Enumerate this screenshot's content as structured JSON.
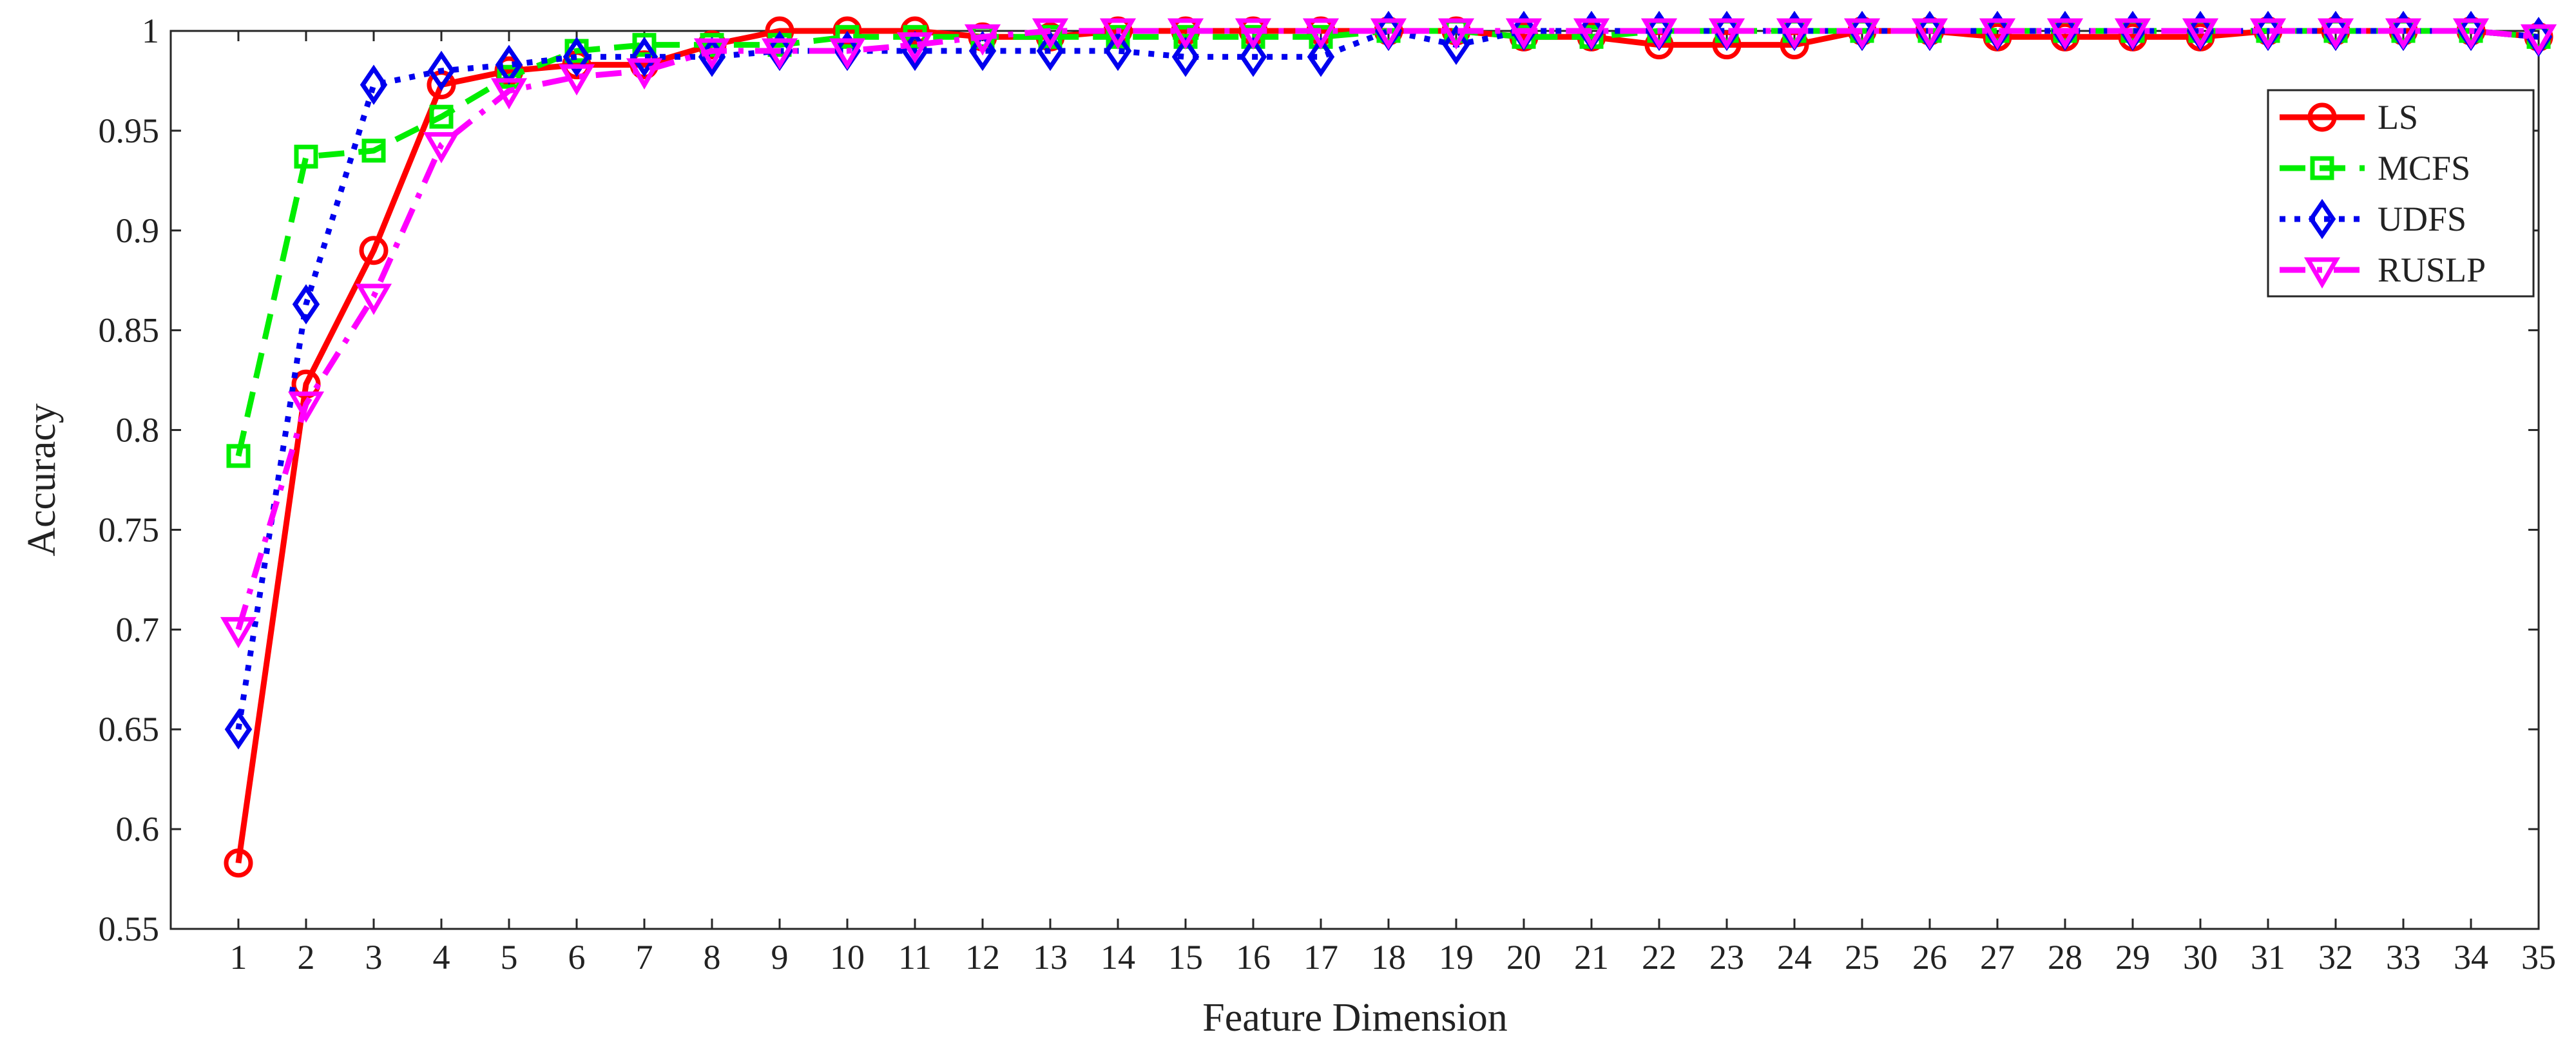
{
  "chart_data": {
    "type": "line",
    "title": "",
    "xlabel": "Feature Dimension",
    "ylabel": "Accuracy",
    "xlim": [
      0,
      35
    ],
    "ylim": [
      0.55,
      1
    ],
    "xticks": [
      1,
      2,
      3,
      4,
      5,
      6,
      7,
      8,
      9,
      10,
      11,
      12,
      13,
      14,
      15,
      16,
      17,
      18,
      19,
      20,
      21,
      22,
      23,
      24,
      25,
      26,
      27,
      28,
      29,
      30,
      31,
      32,
      33,
      34,
      35
    ],
    "yticks": [
      0.55,
      0.6,
      0.65,
      0.7,
      0.75,
      0.8,
      0.85,
      0.9,
      0.95,
      1
    ],
    "ytick_labels": [
      "0.55",
      "0.6",
      "0.65",
      "0.7",
      "0.75",
      "0.8",
      "0.85",
      "0.9",
      "0.95",
      "1"
    ],
    "grid": false,
    "legend_position": "top-right",
    "x": [
      1,
      2,
      3,
      4,
      5,
      6,
      7,
      8,
      9,
      10,
      11,
      12,
      13,
      14,
      15,
      16,
      17,
      18,
      19,
      20,
      21,
      22,
      23,
      24,
      25,
      26,
      27,
      28,
      29,
      30,
      31,
      32,
      33,
      34,
      35
    ],
    "series": [
      {
        "name": "LS",
        "color": "#ff0000",
        "marker": "circle",
        "line_style": "solid",
        "values": [
          0.583,
          0.823,
          0.89,
          0.973,
          0.98,
          0.983,
          0.983,
          0.993,
          1.0,
          1.0,
          1.0,
          0.997,
          0.997,
          1.0,
          1.0,
          1.0,
          1.0,
          1.0,
          1.0,
          0.997,
          0.997,
          0.993,
          0.993,
          0.993,
          1.0,
          1.0,
          0.997,
          0.997,
          0.997,
          0.997,
          1.0,
          1.0,
          1.0,
          1.0,
          0.997
        ]
      },
      {
        "name": "MCFS",
        "color": "#00ee00",
        "marker": "square",
        "line_style": "dashed",
        "values": [
          0.787,
          0.937,
          0.94,
          0.957,
          0.977,
          0.99,
          0.993,
          0.993,
          0.993,
          0.997,
          0.997,
          0.997,
          0.997,
          0.997,
          0.997,
          0.997,
          0.997,
          1.0,
          1.0,
          0.997,
          0.997,
          1.0,
          1.0,
          1.0,
          1.0,
          1.0,
          1.0,
          1.0,
          1.0,
          1.0,
          1.0,
          1.0,
          1.0,
          1.0,
          0.997
        ]
      },
      {
        "name": "UDFS",
        "color": "#0000ee",
        "marker": "diamond",
        "line_style": "dotted",
        "values": [
          0.65,
          0.863,
          0.973,
          0.98,
          0.983,
          0.987,
          0.987,
          0.987,
          0.99,
          0.99,
          0.99,
          0.99,
          0.99,
          0.99,
          0.987,
          0.987,
          0.987,
          1.0,
          0.993,
          1.0,
          1.0,
          1.0,
          1.0,
          1.0,
          1.0,
          1.0,
          1.0,
          1.0,
          1.0,
          1.0,
          1.0,
          1.0,
          1.0,
          1.0,
          0.997
        ]
      },
      {
        "name": "RUSLP",
        "color": "#ff00ff",
        "marker": "triangle-down",
        "line_style": "dashdot",
        "values": [
          0.7,
          0.813,
          0.867,
          0.943,
          0.97,
          0.977,
          0.98,
          0.99,
          0.99,
          0.99,
          0.993,
          0.997,
          1.0,
          1.0,
          1.0,
          1.0,
          1.0,
          1.0,
          1.0,
          1.0,
          1.0,
          1.0,
          1.0,
          1.0,
          1.0,
          1.0,
          1.0,
          1.0,
          1.0,
          1.0,
          1.0,
          1.0,
          1.0,
          1.0,
          0.997
        ]
      }
    ]
  }
}
